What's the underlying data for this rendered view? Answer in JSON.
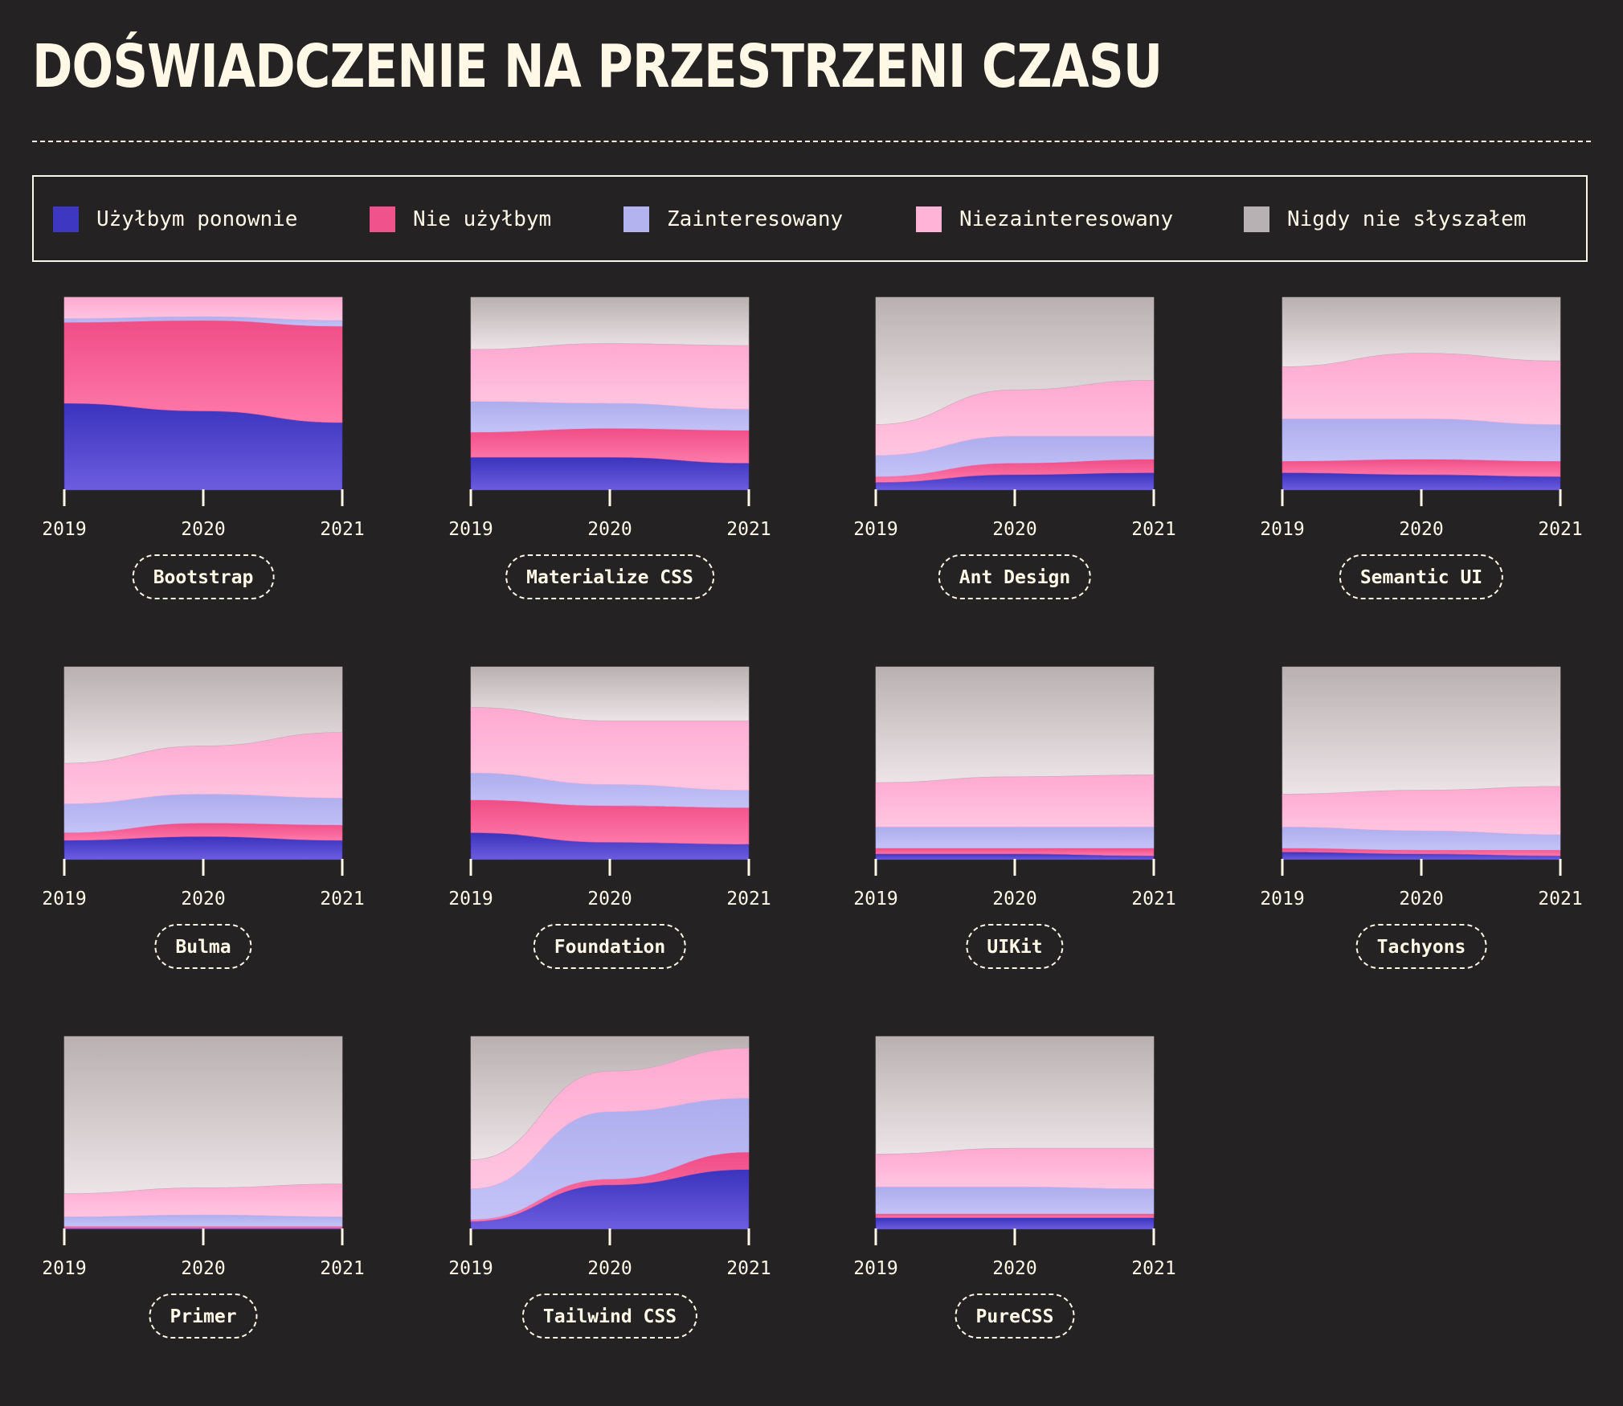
{
  "page": {
    "title": "DOŚWIADCZENIE NA PRZESTRZENI CZASU"
  },
  "legend": {
    "items": [
      {
        "key": "would_use_again",
        "label": "Użyłbym ponownie",
        "color": "#3e37c2"
      },
      {
        "key": "would_not_use",
        "label": "Nie użyłbym",
        "color": "#f0538c"
      },
      {
        "key": "interested",
        "label": "Zainteresowany",
        "color": "#b3b3f0"
      },
      {
        "key": "not_interested",
        "label": "Niezainteresowany",
        "color": "#ffb3d6"
      },
      {
        "key": "never_heard",
        "label": "Nigdy nie słyszałem",
        "color": "#b8b1b4"
      }
    ]
  },
  "chart_data": [
    {
      "type": "area",
      "stacked": true,
      "name": "Bootstrap",
      "x": [
        "2019",
        "2020",
        "2021"
      ],
      "ylim": [
        0,
        100
      ],
      "series": [
        {
          "key": "would_use_again",
          "values": [
            45,
            41,
            35
          ]
        },
        {
          "key": "would_not_use",
          "values": [
            42,
            47,
            50
          ]
        },
        {
          "key": "interested",
          "values": [
            2,
            2,
            3
          ]
        },
        {
          "key": "not_interested",
          "values": [
            11,
            10,
            12
          ]
        },
        {
          "key": "never_heard",
          "values": [
            0,
            0,
            0
          ]
        }
      ]
    },
    {
      "type": "area",
      "stacked": true,
      "name": "Materialize CSS",
      "x": [
        "2019",
        "2020",
        "2021"
      ],
      "ylim": [
        0,
        100
      ],
      "series": [
        {
          "key": "would_use_again",
          "values": [
            17,
            17,
            14
          ]
        },
        {
          "key": "would_not_use",
          "values": [
            13,
            15,
            17
          ]
        },
        {
          "key": "interested",
          "values": [
            16,
            13,
            11
          ]
        },
        {
          "key": "not_interested",
          "values": [
            27,
            31,
            33
          ]
        },
        {
          "key": "never_heard",
          "values": [
            27,
            24,
            25
          ]
        }
      ]
    },
    {
      "type": "area",
      "stacked": true,
      "name": "Ant Design",
      "x": [
        "2019",
        "2020",
        "2021"
      ],
      "ylim": [
        0,
        100
      ],
      "series": [
        {
          "key": "would_use_again",
          "values": [
            4,
            8,
            9
          ]
        },
        {
          "key": "would_not_use",
          "values": [
            3,
            6,
            7
          ]
        },
        {
          "key": "interested",
          "values": [
            11,
            14,
            12
          ]
        },
        {
          "key": "not_interested",
          "values": [
            16,
            24,
            29
          ]
        },
        {
          "key": "never_heard",
          "values": [
            66,
            48,
            43
          ]
        }
      ]
    },
    {
      "type": "area",
      "stacked": true,
      "name": "Semantic UI",
      "x": [
        "2019",
        "2020",
        "2021"
      ],
      "ylim": [
        0,
        100
      ],
      "series": [
        {
          "key": "would_use_again",
          "values": [
            9,
            8,
            7
          ]
        },
        {
          "key": "would_not_use",
          "values": [
            6,
            8,
            8
          ]
        },
        {
          "key": "interested",
          "values": [
            22,
            21,
            19
          ]
        },
        {
          "key": "not_interested",
          "values": [
            27,
            34,
            33
          ]
        },
        {
          "key": "never_heard",
          "values": [
            36,
            29,
            33
          ]
        }
      ]
    },
    {
      "type": "area",
      "stacked": true,
      "name": "Bulma",
      "x": [
        "2019",
        "2020",
        "2021"
      ],
      "ylim": [
        0,
        100
      ],
      "series": [
        {
          "key": "would_use_again",
          "values": [
            10,
            12,
            10
          ]
        },
        {
          "key": "would_not_use",
          "values": [
            4,
            7,
            8
          ]
        },
        {
          "key": "interested",
          "values": [
            15,
            15,
            14
          ]
        },
        {
          "key": "not_interested",
          "values": [
            21,
            25,
            34
          ]
        },
        {
          "key": "never_heard",
          "values": [
            50,
            41,
            34
          ]
        }
      ]
    },
    {
      "type": "area",
      "stacked": true,
      "name": "Foundation",
      "x": [
        "2019",
        "2020",
        "2021"
      ],
      "ylim": [
        0,
        100
      ],
      "series": [
        {
          "key": "would_use_again",
          "values": [
            14,
            9,
            8
          ]
        },
        {
          "key": "would_not_use",
          "values": [
            17,
            19,
            19
          ]
        },
        {
          "key": "interested",
          "values": [
            14,
            11,
            9
          ]
        },
        {
          "key": "not_interested",
          "values": [
            34,
            33,
            36
          ]
        },
        {
          "key": "never_heard",
          "values": [
            21,
            28,
            28
          ]
        }
      ]
    },
    {
      "type": "area",
      "stacked": true,
      "name": "UIKit",
      "x": [
        "2019",
        "2020",
        "2021"
      ],
      "ylim": [
        0,
        100
      ],
      "series": [
        {
          "key": "would_use_again",
          "values": [
            3,
            3,
            2
          ]
        },
        {
          "key": "would_not_use",
          "values": [
            3,
            3,
            4
          ]
        },
        {
          "key": "interested",
          "values": [
            11,
            11,
            11
          ]
        },
        {
          "key": "not_interested",
          "values": [
            23,
            26,
            27
          ]
        },
        {
          "key": "never_heard",
          "values": [
            60,
            57,
            56
          ]
        }
      ]
    },
    {
      "type": "area",
      "stacked": true,
      "name": "Tachyons",
      "x": [
        "2019",
        "2020",
        "2021"
      ],
      "ylim": [
        0,
        100
      ],
      "series": [
        {
          "key": "would_use_again",
          "values": [
            4,
            3,
            2
          ]
        },
        {
          "key": "would_not_use",
          "values": [
            2,
            2,
            3
          ]
        },
        {
          "key": "interested",
          "values": [
            11,
            10,
            8
          ]
        },
        {
          "key": "not_interested",
          "values": [
            17,
            21,
            25
          ]
        },
        {
          "key": "never_heard",
          "values": [
            66,
            64,
            62
          ]
        }
      ]
    },
    {
      "type": "area",
      "stacked": true,
      "name": "Primer",
      "x": [
        "2019",
        "2020",
        "2021"
      ],
      "ylim": [
        0,
        100
      ],
      "series": [
        {
          "key": "would_use_again",
          "values": [
            0.5,
            0.5,
            0.5
          ]
        },
        {
          "key": "would_not_use",
          "values": [
            1,
            1,
            1
          ]
        },
        {
          "key": "interested",
          "values": [
            5,
            6,
            5
          ]
        },
        {
          "key": "not_interested",
          "values": [
            12,
            14,
            17
          ]
        },
        {
          "key": "never_heard",
          "values": [
            81.5,
            78.5,
            76.5
          ]
        }
      ]
    },
    {
      "type": "area",
      "stacked": true,
      "name": "Tailwind CSS",
      "x": [
        "2019",
        "2020",
        "2021"
      ],
      "ylim": [
        0,
        100
      ],
      "series": [
        {
          "key": "would_use_again",
          "values": [
            4,
            23,
            31
          ]
        },
        {
          "key": "would_not_use",
          "values": [
            1,
            3,
            9
          ]
        },
        {
          "key": "interested",
          "values": [
            16,
            35,
            28
          ]
        },
        {
          "key": "not_interested",
          "values": [
            15,
            21,
            26
          ]
        },
        {
          "key": "never_heard",
          "values": [
            64,
            18,
            6
          ]
        }
      ]
    },
    {
      "type": "area",
      "stacked": true,
      "name": "PureCSS",
      "x": [
        "2019",
        "2020",
        "2021"
      ],
      "ylim": [
        0,
        100
      ],
      "series": [
        {
          "key": "would_use_again",
          "values": [
            6,
            6,
            6
          ]
        },
        {
          "key": "would_not_use",
          "values": [
            2,
            2,
            2
          ]
        },
        {
          "key": "interested",
          "values": [
            14,
            14,
            13
          ]
        },
        {
          "key": "not_interested",
          "values": [
            17,
            20,
            21
          ]
        },
        {
          "key": "never_heard",
          "values": [
            61,
            58,
            58
          ]
        }
      ]
    }
  ]
}
